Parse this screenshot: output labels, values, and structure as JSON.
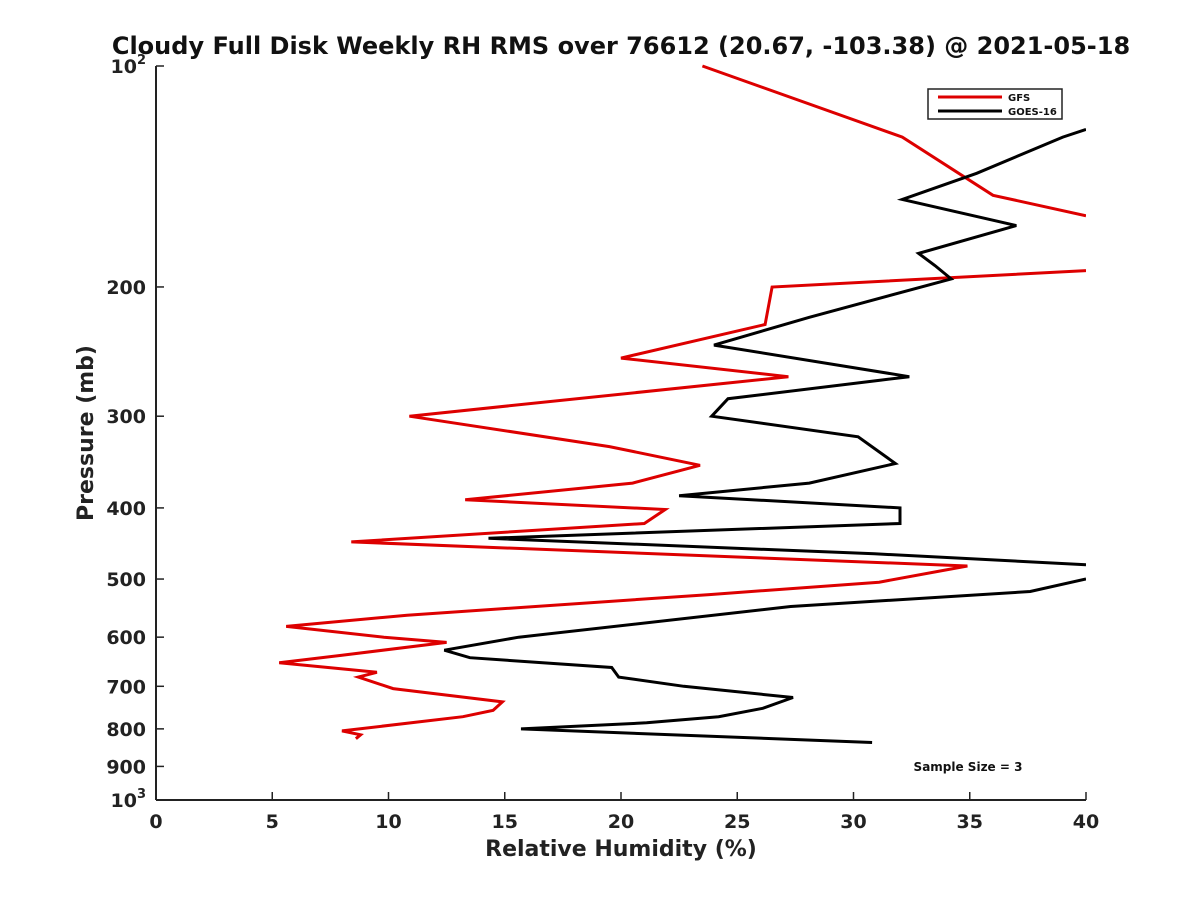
{
  "chart_data": {
    "type": "line",
    "title": "Cloudy Full Disk Weekly RH RMS over 76612 (20.67, -103.38) @ 2021-05-18",
    "xlabel": "Relative Humidity (%)",
    "ylabel": "Pressure (mb)",
    "xlim": [
      0,
      40
    ],
    "ylim": [
      100,
      1000
    ],
    "y_scale": "log",
    "y_reversed": true,
    "x_ticks": [
      0,
      5,
      10,
      15,
      20,
      25,
      30,
      35,
      40
    ],
    "x_tick_labels": [
      "0",
      "5",
      "10",
      "15",
      "20",
      "25",
      "30",
      "35",
      "40"
    ],
    "y_ticks": [
      {
        "value": 100,
        "label": "10",
        "sup": "2"
      },
      {
        "value": 200,
        "label": "200",
        "sup": ""
      },
      {
        "value": 300,
        "label": "300",
        "sup": ""
      },
      {
        "value": 400,
        "label": "400",
        "sup": ""
      },
      {
        "value": 500,
        "label": "500",
        "sup": ""
      },
      {
        "value": 600,
        "label": "600",
        "sup": ""
      },
      {
        "value": 700,
        "label": "700",
        "sup": ""
      },
      {
        "value": 800,
        "label": "800",
        "sup": ""
      },
      {
        "value": 900,
        "label": "900",
        "sup": ""
      },
      {
        "value": 1000,
        "label": "10",
        "sup": "3"
      }
    ],
    "legend_position": "top-right",
    "annotation": "Sample Size = 3",
    "series": [
      {
        "name": "GFS",
        "color": "#dd0000",
        "points": [
          [
            23.5,
            100
          ],
          [
            32.1,
            125
          ],
          [
            36.0,
            150
          ],
          [
            40.0,
            160
          ],
          [
            null,
            null
          ],
          [
            40.0,
            190
          ],
          [
            26.5,
            200
          ],
          [
            26.2,
            225
          ],
          [
            20.0,
            250
          ],
          [
            27.2,
            265
          ],
          [
            10.9,
            300
          ],
          [
            19.5,
            330
          ],
          [
            23.4,
            350
          ],
          [
            20.5,
            370
          ],
          [
            13.3,
            390
          ],
          [
            21.9,
            402
          ],
          [
            21.0,
            420
          ],
          [
            8.4,
            445
          ],
          [
            34.9,
            480
          ],
          [
            31.1,
            505
          ],
          [
            23.8,
            525
          ],
          [
            10.8,
            560
          ],
          [
            5.6,
            580
          ],
          [
            9.8,
            600
          ],
          [
            12.5,
            610
          ],
          [
            8.0,
            635
          ],
          [
            5.3,
            650
          ],
          [
            9.5,
            670
          ],
          [
            8.7,
            680
          ],
          [
            10.2,
            705
          ],
          [
            14.9,
            735
          ],
          [
            14.5,
            755
          ],
          [
            13.2,
            770
          ],
          [
            8.0,
            805
          ],
          [
            8.8,
            815
          ],
          [
            8.6,
            825
          ]
        ]
      },
      {
        "name": "GOES-16",
        "color": "#000000",
        "points": [
          [
            40.0,
            122
          ],
          [
            39.0,
            125
          ],
          [
            35.3,
            140
          ],
          [
            32.1,
            152
          ],
          [
            37.0,
            165
          ],
          [
            32.8,
            180
          ],
          [
            33.5,
            187
          ],
          [
            34.2,
            195
          ],
          [
            28.1,
            220
          ],
          [
            24.0,
            240
          ],
          [
            32.4,
            265
          ],
          [
            24.6,
            284
          ],
          [
            23.9,
            300
          ],
          [
            30.2,
            320
          ],
          [
            31.8,
            348
          ],
          [
            28.1,
            370
          ],
          [
            22.5,
            385
          ],
          [
            32.0,
            400
          ],
          [
            32.0,
            420
          ],
          [
            14.3,
            440
          ],
          [
            30.9,
            462
          ],
          [
            40.0,
            478
          ],
          [
            null,
            null
          ],
          [
            40.0,
            500
          ],
          [
            37.6,
            520
          ],
          [
            27.3,
            545
          ],
          [
            15.6,
            600
          ],
          [
            12.4,
            625
          ],
          [
            13.5,
            640
          ],
          [
            19.6,
            660
          ],
          [
            19.9,
            680
          ],
          [
            22.7,
            700
          ],
          [
            27.4,
            725
          ],
          [
            26.1,
            750
          ],
          [
            24.2,
            770
          ],
          [
            21.1,
            785
          ],
          [
            15.7,
            800
          ],
          [
            30.8,
            835
          ]
        ]
      }
    ]
  }
}
